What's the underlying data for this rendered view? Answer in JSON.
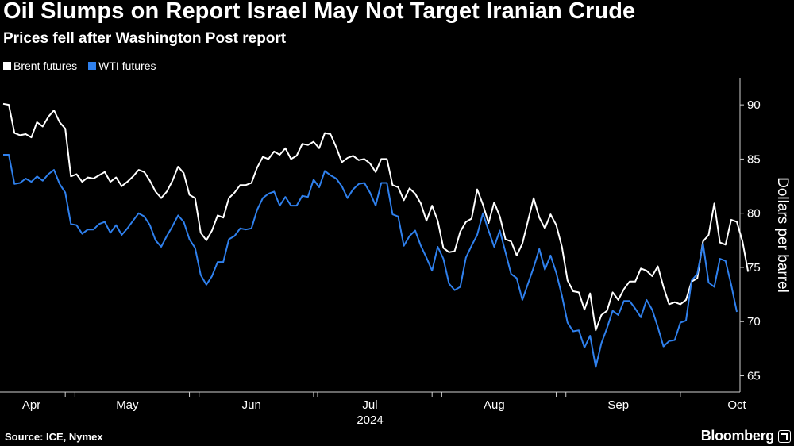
{
  "colors": {
    "brent": "#ffffff",
    "wti": "#2f80ed",
    "background": "#000000",
    "axis": "#cfcfcf"
  },
  "source": "Source: ICE, Nymex",
  "brand": "Bloomberg",
  "chart_data": {
    "type": "line",
    "title": "Oil Slumps on Report Israel May Not Target Iranian Crude",
    "subtitle": "Prices fell after Washington Post report",
    "xlabel": "",
    "ylabel": "Dollars per barrel",
    "ylim": [
      63.5,
      92.5
    ],
    "yticks": [
      65,
      70,
      75,
      80,
      85,
      90
    ],
    "xrange": [
      0,
      130
    ],
    "xticks": [
      {
        "label": "Apr",
        "pos": 5
      },
      {
        "label": "May",
        "pos": 22
      },
      {
        "label": "Jun",
        "pos": 44
      },
      {
        "label": "Jul",
        "pos": 65
      },
      {
        "label": "Aug",
        "pos": 87
      },
      {
        "label": "Sep",
        "pos": 109
      },
      {
        "label": "Oct",
        "pos": 130
      }
    ],
    "year_label": "2024",
    "year_pos": 65,
    "series": [
      {
        "name": "Brent futures",
        "key": "brent",
        "values": [
          90.1,
          90.0,
          87.4,
          87.2,
          87.3,
          87.0,
          88.4,
          88.0,
          88.9,
          89.5,
          88.4,
          87.8,
          83.4,
          83.6,
          82.9,
          83.3,
          83.2,
          83.5,
          83.8,
          82.9,
          83.3,
          82.5,
          82.9,
          83.4,
          84.0,
          83.8,
          83.0,
          82.0,
          81.4,
          82.0,
          83.0,
          84.3,
          83.7,
          81.7,
          81.4,
          78.2,
          77.5,
          78.4,
          79.8,
          79.6,
          81.4,
          81.9,
          82.6,
          82.6,
          82.8,
          84.2,
          85.2,
          85.0,
          85.7,
          85.4,
          86.0,
          85.0,
          85.3,
          86.4,
          86.3,
          86.6,
          86.0,
          87.4,
          87.3,
          86.1,
          84.7,
          85.1,
          85.3,
          84.9,
          85.0,
          84.6,
          83.8,
          85.0,
          85.0,
          82.6,
          82.4,
          81.2,
          82.3,
          81.8,
          80.9,
          79.3,
          80.7,
          79.3,
          76.8,
          76.4,
          76.5,
          78.3,
          79.2,
          79.5,
          82.2,
          80.8,
          79.1,
          81.0,
          79.7,
          77.6,
          77.4,
          76.1,
          77.2,
          79.3,
          81.4,
          79.6,
          78.6,
          79.9,
          78.9,
          76.9,
          73.8,
          72.8,
          72.7,
          71.1,
          72.6,
          69.2,
          70.6,
          71.0,
          72.7,
          72.0,
          73.0,
          73.7,
          73.7,
          74.9,
          74.7,
          74.2,
          75.1,
          73.2,
          71.6,
          71.8,
          71.6,
          72.0,
          73.7,
          74.0,
          77.4,
          78.0,
          80.9,
          77.3,
          77.1,
          79.4,
          79.2,
          77.4,
          74.6
        ]
      },
      {
        "name": "WTI futures",
        "key": "wti",
        "values": [
          85.4,
          85.4,
          82.7,
          82.8,
          83.2,
          82.9,
          83.4,
          83.0,
          83.6,
          84.0,
          82.7,
          81.9,
          79.0,
          78.9,
          78.1,
          78.5,
          78.5,
          79.0,
          79.2,
          78.2,
          78.9,
          78.0,
          78.6,
          79.3,
          80.0,
          79.7,
          78.9,
          77.5,
          76.9,
          77.9,
          78.8,
          79.8,
          79.2,
          77.6,
          76.8,
          74.3,
          73.4,
          74.2,
          75.5,
          75.5,
          77.6,
          77.9,
          78.6,
          78.5,
          78.6,
          80.3,
          81.4,
          81.8,
          82.0,
          80.7,
          81.5,
          80.7,
          80.7,
          81.6,
          81.5,
          83.1,
          82.4,
          83.9,
          83.5,
          83.2,
          82.5,
          81.4,
          82.2,
          82.7,
          82.8,
          81.9,
          80.7,
          82.8,
          82.8,
          79.9,
          79.7,
          77.0,
          77.9,
          78.4,
          77.0,
          75.9,
          74.7,
          76.9,
          75.8,
          73.5,
          72.9,
          73.2,
          75.9,
          77.0,
          78.0,
          80.0,
          78.4,
          76.9,
          78.4,
          76.4,
          74.4,
          74.0,
          72.0,
          73.5,
          75.0,
          76.7,
          74.8,
          76.1,
          74.5,
          72.4,
          69.9,
          69.1,
          69.2,
          67.6,
          68.7,
          65.8,
          68.0,
          69.4,
          71.0,
          70.6,
          71.9,
          71.9,
          71.2,
          70.4,
          72.0,
          71.1,
          69.5,
          67.7,
          68.2,
          68.3,
          69.9,
          70.1,
          73.8,
          74.4,
          77.2,
          73.6,
          73.2,
          75.8,
          75.6,
          73.4,
          70.9
        ]
      }
    ]
  }
}
